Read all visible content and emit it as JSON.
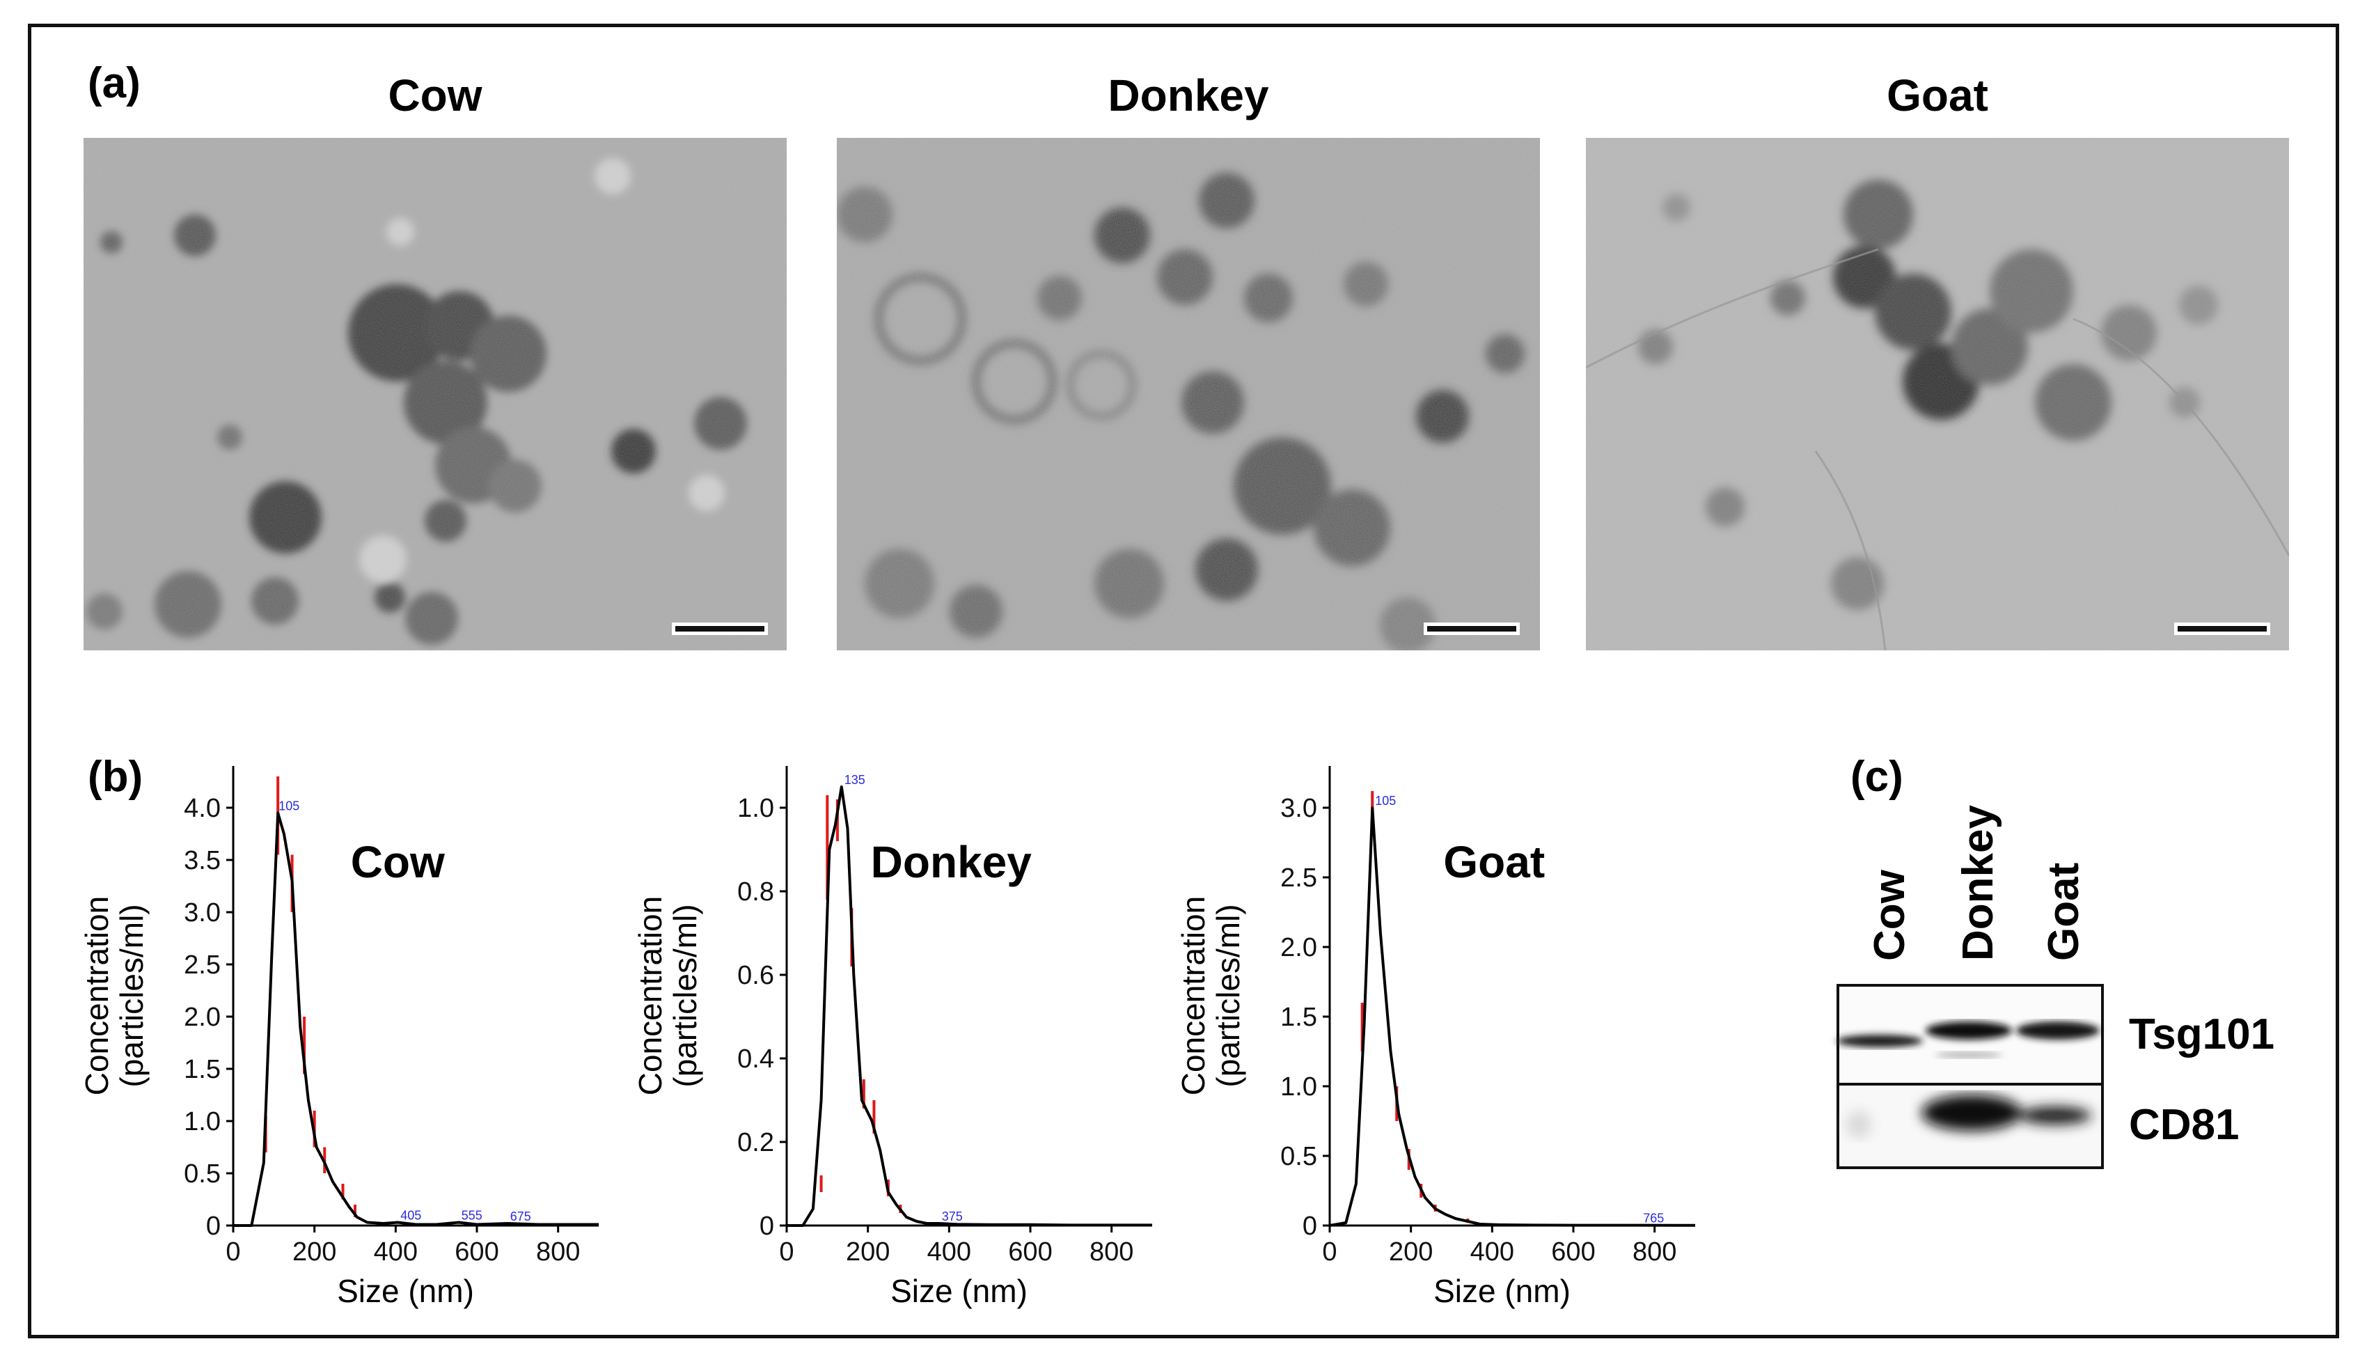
{
  "panel_a": {
    "letter": "(a)",
    "titles": [
      "Cow",
      "Donkey",
      "Goat"
    ]
  },
  "panel_b": {
    "letter": "(b)"
  },
  "panel_c": {
    "letter": "(c)",
    "lanes": [
      "Cow",
      "Donkey",
      "Goat"
    ],
    "bands": [
      "Tsg101",
      "CD81"
    ]
  },
  "chart_data": [
    {
      "type": "line",
      "title": "Cow",
      "xlabel": "Size (nm)",
      "ylabel": "Concentration\n(particles/ml)",
      "xlim": [
        0,
        900
      ],
      "ylim": [
        0,
        4.4
      ],
      "xticks": [
        0,
        200,
        400,
        600,
        800
      ],
      "yticks": [
        0,
        0.5,
        1.0,
        1.5,
        2.0,
        2.5,
        3.0,
        3.5,
        4.0
      ],
      "x": [
        0,
        45,
        75,
        95,
        110,
        125,
        145,
        165,
        185,
        205,
        225,
        245,
        265,
        285,
        305,
        330,
        370,
        405,
        450,
        500,
        555,
        600,
        675,
        750,
        850,
        900
      ],
      "y": [
        0,
        0,
        0.6,
        2.6,
        3.95,
        3.75,
        3.3,
        1.9,
        1.2,
        0.75,
        0.6,
        0.42,
        0.3,
        0.18,
        0.08,
        0.03,
        0.02,
        0.03,
        0.01,
        0.01,
        0.03,
        0.01,
        0.02,
        0.01,
        0.01,
        0.01
      ],
      "peak_labels": [
        {
          "x": 105,
          "y": 3.95,
          "text": "105"
        },
        {
          "x": 405,
          "y": 0.03,
          "text": "405"
        },
        {
          "x": 555,
          "y": 0.03,
          "text": "555"
        },
        {
          "x": 675,
          "y": 0.02,
          "text": "675"
        }
      ],
      "error_bars": [
        {
          "x": 80,
          "lo": 0.7,
          "hi": 1.05
        },
        {
          "x": 110,
          "lo": 3.55,
          "hi": 4.3
        },
        {
          "x": 145,
          "lo": 3.0,
          "hi": 3.55
        },
        {
          "x": 175,
          "lo": 1.45,
          "hi": 2.0
        },
        {
          "x": 200,
          "lo": 0.75,
          "hi": 1.1
        },
        {
          "x": 225,
          "lo": 0.5,
          "hi": 0.75
        },
        {
          "x": 270,
          "lo": 0.25,
          "hi": 0.4
        },
        {
          "x": 300,
          "lo": 0.08,
          "hi": 0.2
        }
      ]
    },
    {
      "type": "line",
      "title": "Donkey",
      "xlabel": "Size (nm)",
      "ylabel": "Concentration\n(particles/ml)",
      "xlim": [
        0,
        900
      ],
      "ylim": [
        0,
        1.1
      ],
      "xticks": [
        0,
        200,
        400,
        600,
        800
      ],
      "yticks": [
        0,
        0.2,
        0.4,
        0.6,
        0.8,
        1.0
      ],
      "x": [
        0,
        40,
        65,
        85,
        105,
        120,
        135,
        150,
        165,
        185,
        210,
        230,
        250,
        270,
        295,
        320,
        345,
        375,
        420,
        500,
        600,
        700,
        800,
        900
      ],
      "y": [
        0,
        0,
        0.04,
        0.3,
        0.9,
        0.96,
        1.05,
        0.95,
        0.6,
        0.3,
        0.25,
        0.18,
        0.08,
        0.05,
        0.02,
        0.01,
        0.005,
        0.005,
        0.003,
        0.002,
        0.002,
        0.001,
        0.001,
        0.001
      ],
      "peak_labels": [
        {
          "x": 135,
          "y": 1.05,
          "text": "135"
        },
        {
          "x": 375,
          "y": 0.005,
          "text": "375"
        }
      ],
      "error_bars": [
        {
          "x": 85,
          "lo": 0.08,
          "hi": 0.12
        },
        {
          "x": 100,
          "lo": 0.78,
          "hi": 1.03
        },
        {
          "x": 125,
          "lo": 0.92,
          "hi": 1.02
        },
        {
          "x": 160,
          "lo": 0.62,
          "hi": 0.76
        },
        {
          "x": 190,
          "lo": 0.28,
          "hi": 0.35
        },
        {
          "x": 215,
          "lo": 0.22,
          "hi": 0.3
        },
        {
          "x": 250,
          "lo": 0.07,
          "hi": 0.11
        },
        {
          "x": 280,
          "lo": 0.03,
          "hi": 0.05
        }
      ]
    },
    {
      "type": "line",
      "title": "Goat",
      "xlabel": "Size (nm)",
      "ylabel": "Concentration\n(particles/ml)",
      "xlim": [
        0,
        900
      ],
      "ylim": [
        0,
        3.3
      ],
      "xticks": [
        0,
        200,
        400,
        600,
        800
      ],
      "yticks": [
        0,
        0.5,
        1.0,
        1.5,
        2.0,
        2.5,
        3.0
      ],
      "x": [
        0,
        40,
        65,
        85,
        105,
        125,
        150,
        170,
        190,
        210,
        235,
        260,
        285,
        310,
        340,
        370,
        420,
        500,
        600,
        700,
        765,
        850,
        900
      ],
      "y": [
        0,
        0.02,
        0.3,
        1.45,
        3.0,
        2.1,
        1.25,
        0.8,
        0.55,
        0.35,
        0.2,
        0.12,
        0.08,
        0.05,
        0.03,
        0.01,
        0.005,
        0.003,
        0.002,
        0.002,
        0.002,
        0.001,
        0.001
      ],
      "peak_labels": [
        {
          "x": 105,
          "y": 3.0,
          "text": "105"
        },
        {
          "x": 765,
          "y": 0.002,
          "text": "765"
        }
      ],
      "error_bars": [
        {
          "x": 80,
          "lo": 1.25,
          "hi": 1.6
        },
        {
          "x": 105,
          "lo": 2.85,
          "hi": 3.12
        },
        {
          "x": 165,
          "lo": 0.75,
          "hi": 1.0
        },
        {
          "x": 195,
          "lo": 0.4,
          "hi": 0.55
        },
        {
          "x": 225,
          "lo": 0.2,
          "hi": 0.3
        },
        {
          "x": 260,
          "lo": 0.1,
          "hi": 0.15
        },
        {
          "x": 340,
          "lo": 0.02,
          "hi": 0.05
        }
      ]
    }
  ]
}
